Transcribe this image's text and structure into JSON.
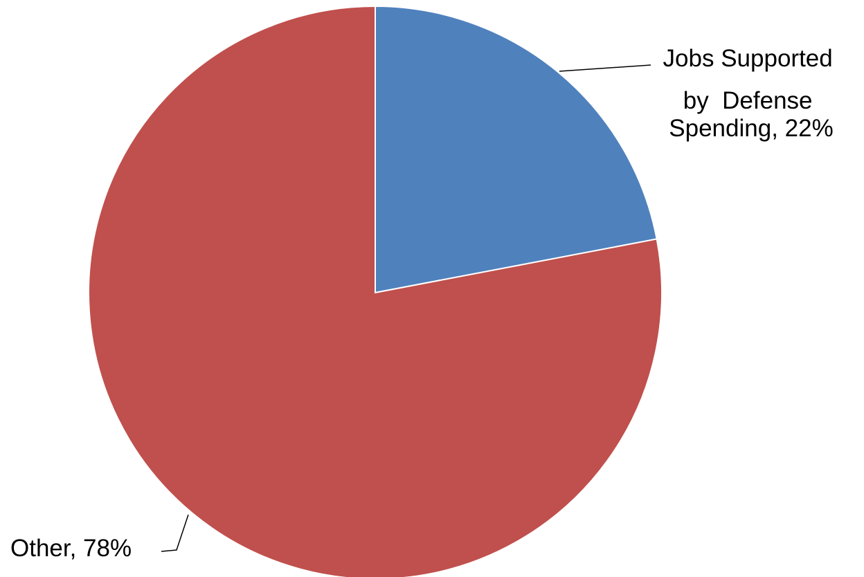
{
  "chart_data": {
    "type": "pie",
    "title": "",
    "slices": [
      {
        "label_lines": [
          "Jobs Supported",
          "by  Defense",
          "Spending, 22%"
        ],
        "value": 22,
        "color": "#4f81bd"
      },
      {
        "label_lines": [
          "Other, 78%"
        ],
        "value": 78,
        "color": "#c0504d"
      }
    ],
    "start_angle_deg": 0,
    "direction": "clockwise",
    "legend": "none"
  }
}
